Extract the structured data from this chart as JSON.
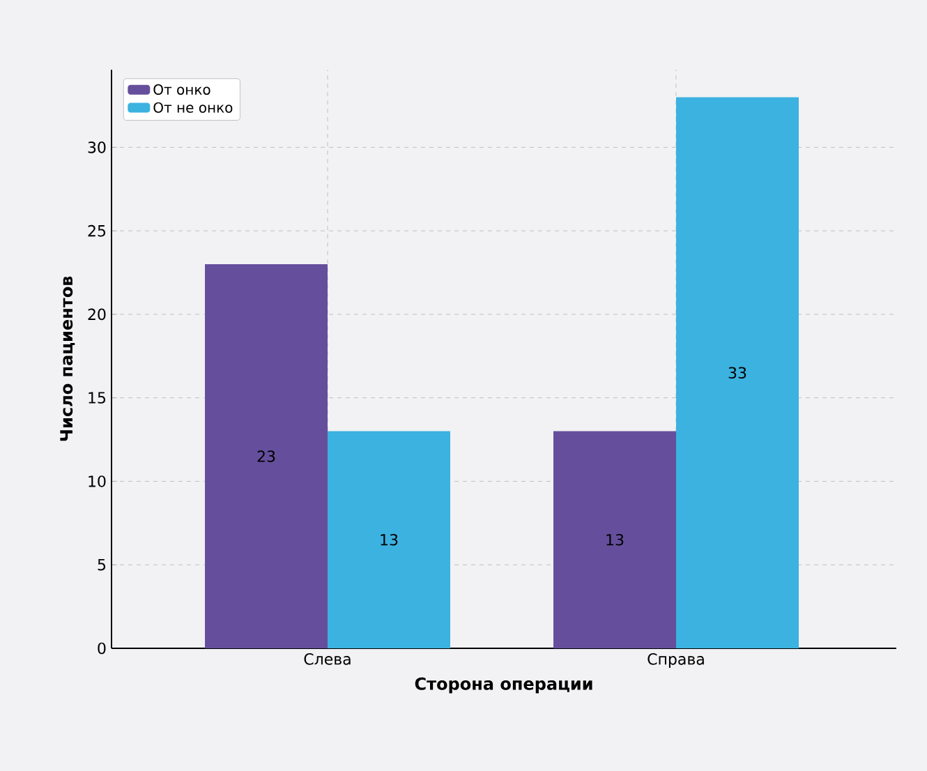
{
  "chart_data": {
    "type": "bar",
    "xlabel": "Сторона операции",
    "ylabel": "Число пациентов",
    "categories": [
      "Слева",
      "Справа"
    ],
    "series": [
      {
        "name": "От онко",
        "color": "#654f9c",
        "values": [
          23,
          13
        ]
      },
      {
        "name": "От не онко",
        "color": "#3cb2e0",
        "values": [
          13,
          33
        ]
      }
    ],
    "ylim": [
      0,
      34.65
    ],
    "yticks": [
      0,
      5,
      10,
      15,
      20,
      25,
      30
    ],
    "grid": true,
    "legend": "top left",
    "data_labels": true
  }
}
